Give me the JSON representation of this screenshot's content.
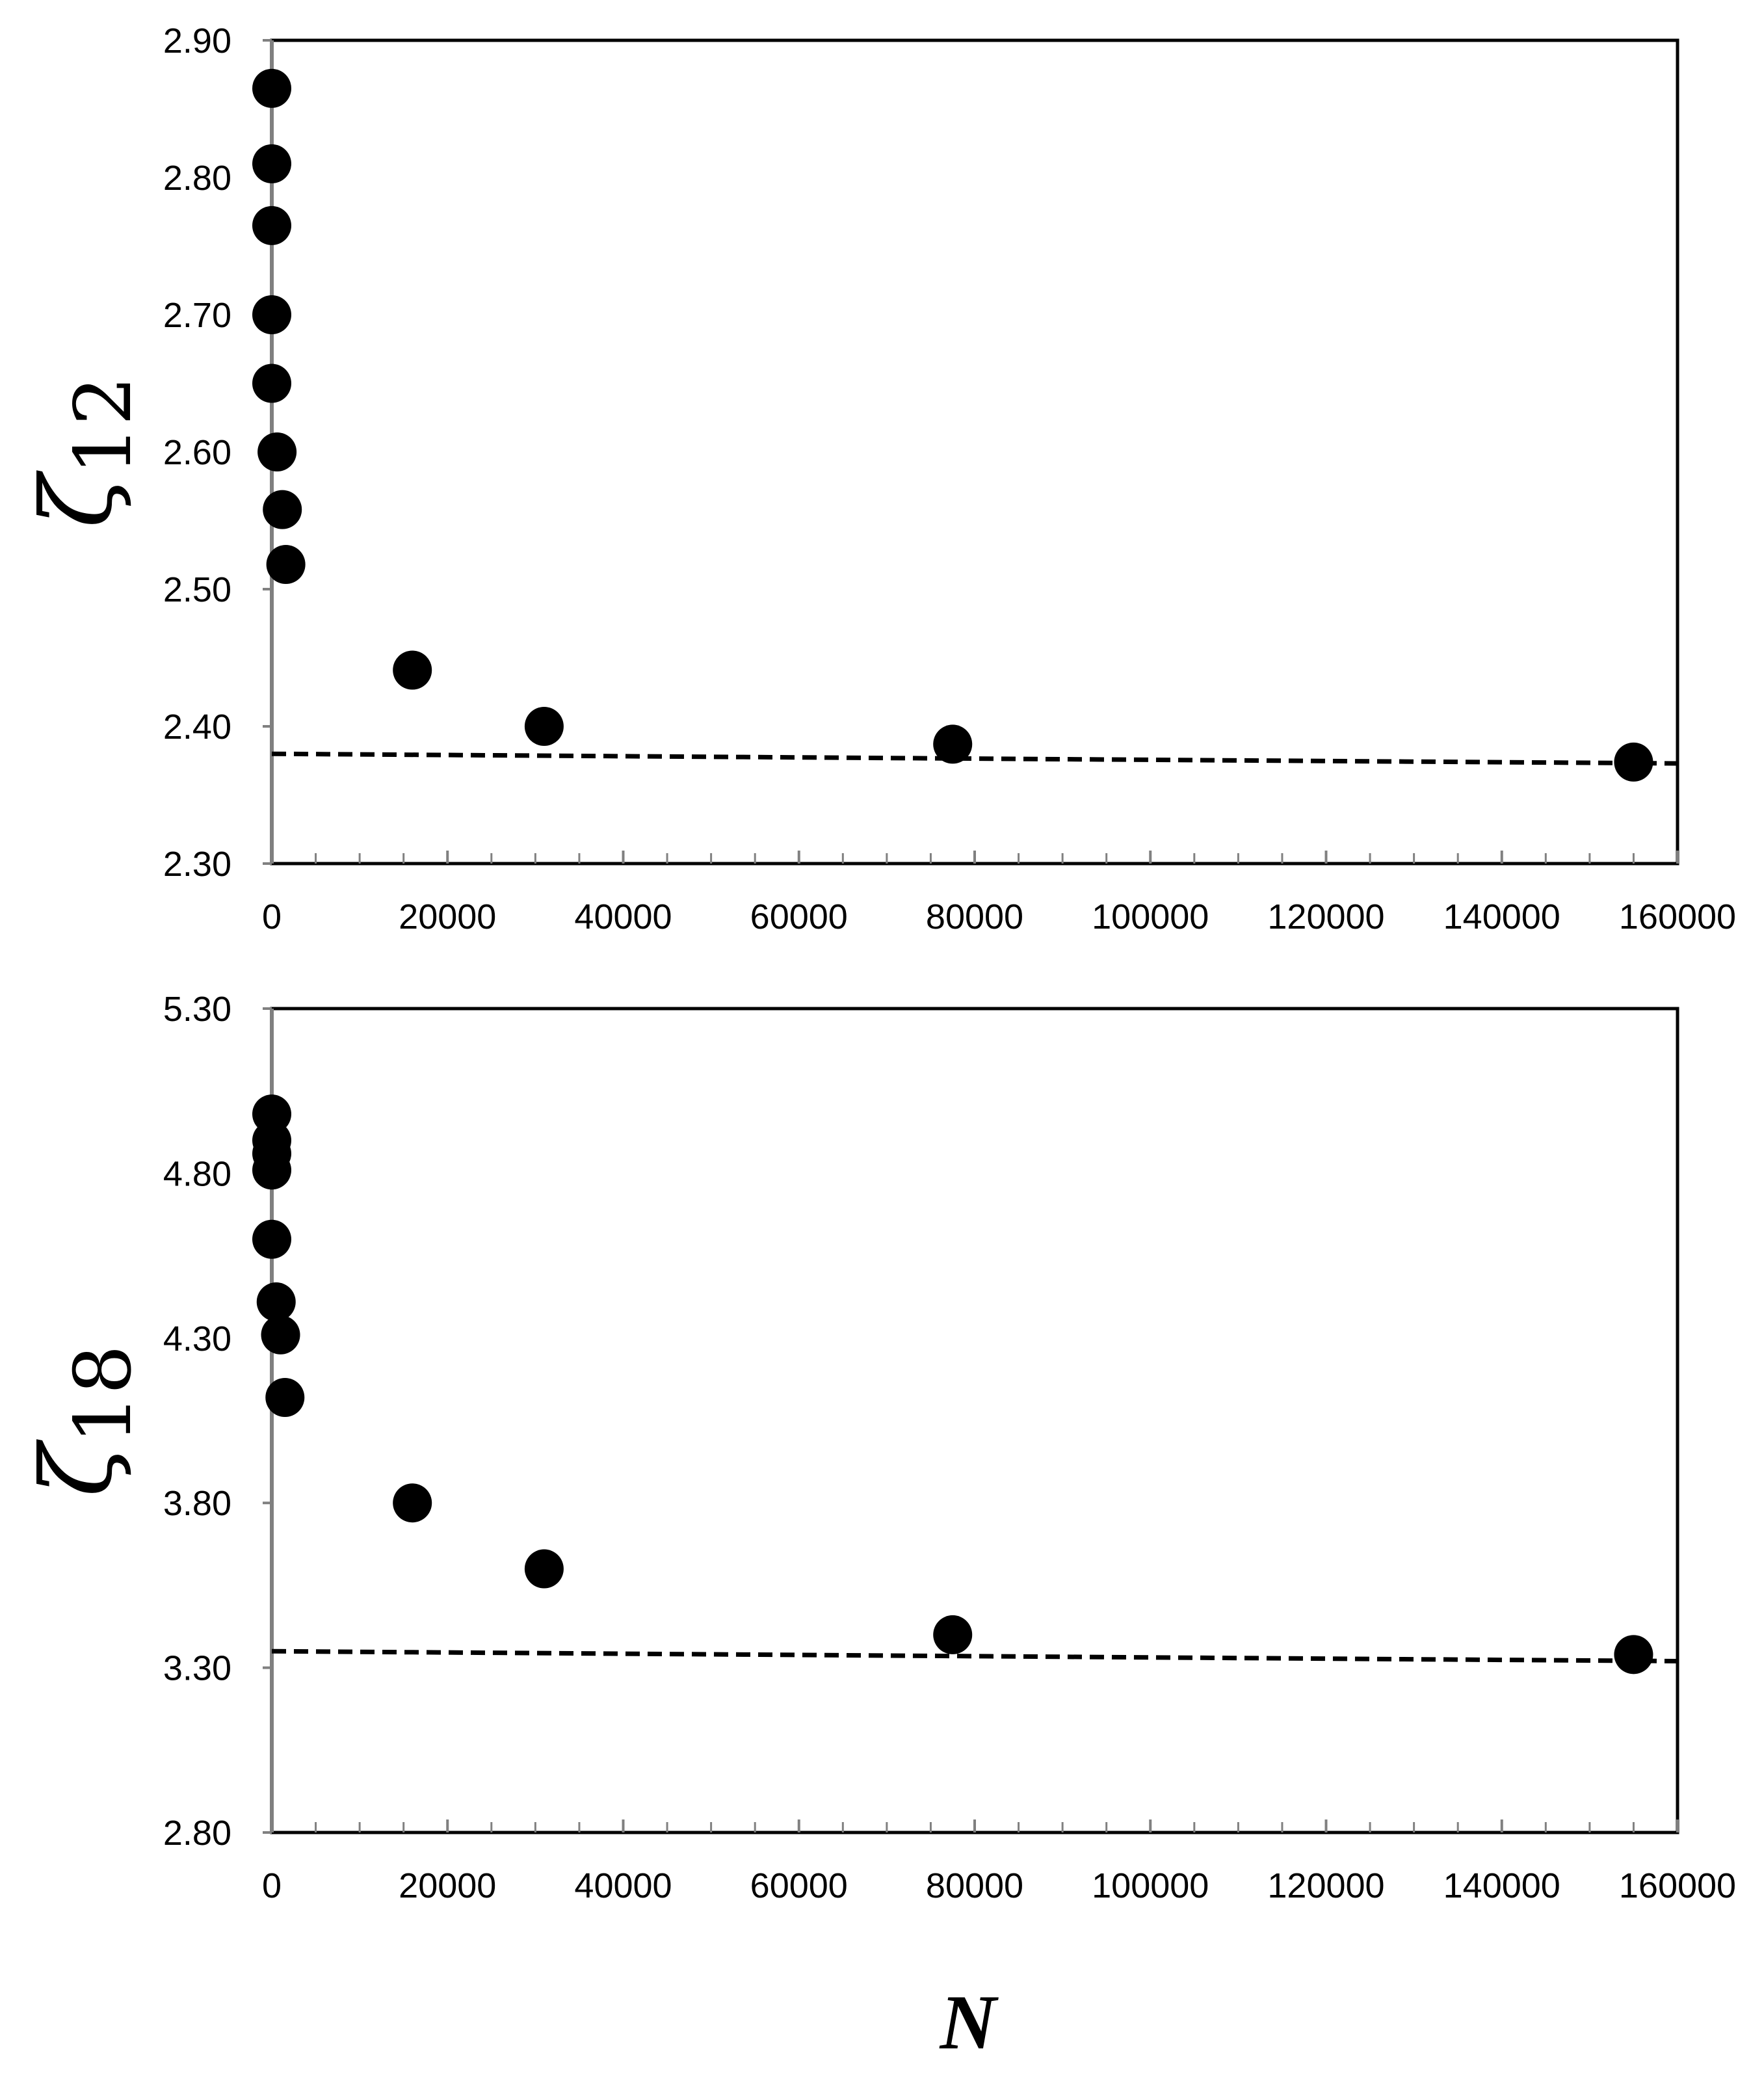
{
  "chart_data": [
    {
      "type": "scatter",
      "ylabel": "ζ12",
      "xlabel": "",
      "xlim": [
        0,
        160000
      ],
      "ylim": [
        2.3,
        2.9
      ],
      "xticks": [
        "0",
        "20000",
        "40000",
        "60000",
        "80000",
        "100000",
        "120000",
        "140000",
        "160000"
      ],
      "yticks": [
        "2.30",
        "2.40",
        "2.50",
        "2.60",
        "2.70",
        "2.80",
        "2.90"
      ],
      "grid": false,
      "points": [
        {
          "x": 0,
          "y": 2.865
        },
        {
          "x": 0,
          "y": 2.81
        },
        {
          "x": 0,
          "y": 2.765
        },
        {
          "x": 0,
          "y": 2.7
        },
        {
          "x": 0,
          "y": 2.65
        },
        {
          "x": 600,
          "y": 2.6
        },
        {
          "x": 1200,
          "y": 2.558
        },
        {
          "x": 1600,
          "y": 2.518
        },
        {
          "x": 16000,
          "y": 2.441
        },
        {
          "x": 31000,
          "y": 2.4
        },
        {
          "x": 77500,
          "y": 2.387
        },
        {
          "x": 155000,
          "y": 2.374
        }
      ],
      "fit_line": {
        "x": [
          0,
          160000
        ],
        "y": [
          2.38,
          2.373
        ],
        "style": "dashed"
      }
    },
    {
      "type": "scatter",
      "ylabel": "ζ18",
      "xlabel": "N",
      "xlim": [
        0,
        160000
      ],
      "ylim": [
        2.8,
        5.3
      ],
      "xticks": [
        "0",
        "20000",
        "40000",
        "60000",
        "80000",
        "100000",
        "120000",
        "140000",
        "160000"
      ],
      "yticks": [
        "2.80",
        "3.30",
        "3.80",
        "4.30",
        "4.80",
        "5.30"
      ],
      "grid": false,
      "points": [
        {
          "x": 0,
          "y": 4.98
        },
        {
          "x": 0,
          "y": 4.9
        },
        {
          "x": 0,
          "y": 4.86
        },
        {
          "x": 0,
          "y": 4.81
        },
        {
          "x": 0,
          "y": 4.6
        },
        {
          "x": 500,
          "y": 4.41
        },
        {
          "x": 1000,
          "y": 4.31
        },
        {
          "x": 1500,
          "y": 4.12
        },
        {
          "x": 16000,
          "y": 3.8
        },
        {
          "x": 31000,
          "y": 3.6
        },
        {
          "x": 77500,
          "y": 3.4
        },
        {
          "x": 155000,
          "y": 3.34
        }
      ],
      "fit_line": {
        "x": [
          0,
          160000
        ],
        "y": [
          3.35,
          3.32
        ],
        "style": "dashed"
      }
    }
  ]
}
